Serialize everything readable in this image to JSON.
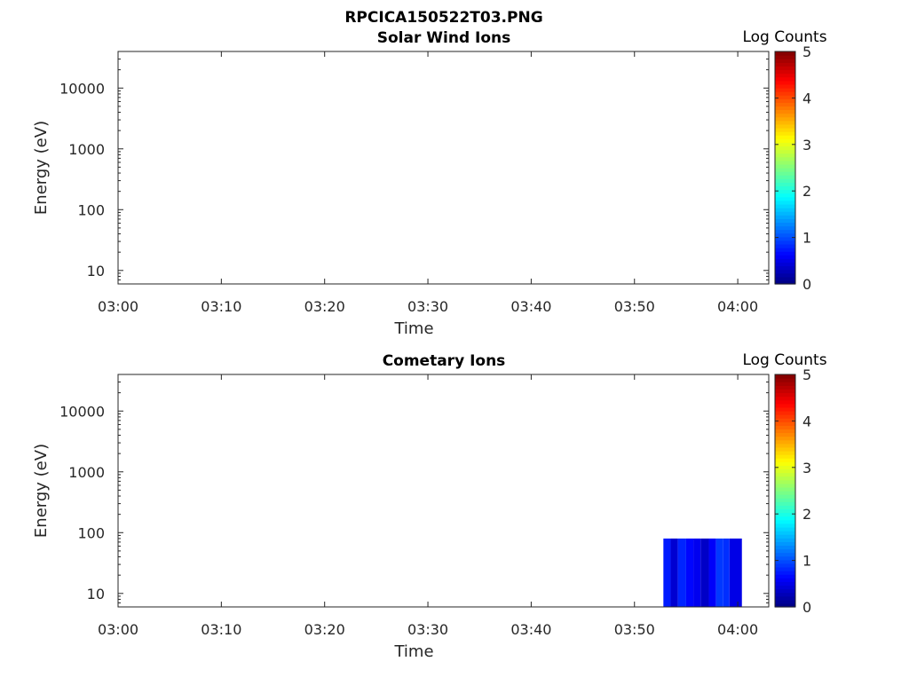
{
  "figure": {
    "title": "RPCICA150522T03.PNG"
  },
  "chart_data": [
    {
      "type": "heatmap",
      "title": "Solar Wind Ions",
      "xlabel": "Time",
      "ylabel": "Energy (eV)",
      "y_scale": "log",
      "xticks": [
        "03:00",
        "03:10",
        "03:20",
        "03:30",
        "03:40",
        "03:50",
        "04:00"
      ],
      "yticks": [
        "10",
        "100",
        "1000",
        "10000"
      ],
      "xlim_minutes_after_0300": [
        0,
        63
      ],
      "ylim": [
        6,
        40000
      ],
      "colorbar": {
        "label": "Log Counts",
        "ticks": [
          "0",
          "1",
          "2",
          "3",
          "4",
          "5"
        ],
        "range": [
          0,
          5
        ]
      },
      "cells": []
    },
    {
      "type": "heatmap",
      "title": "Cometary Ions",
      "xlabel": "Time",
      "ylabel": "Energy (eV)",
      "y_scale": "log",
      "xticks": [
        "03:00",
        "03:10",
        "03:20",
        "03:30",
        "03:40",
        "03:50",
        "04:00"
      ],
      "yticks": [
        "10",
        "100",
        "1000",
        "10000"
      ],
      "xlim_minutes_after_0300": [
        0,
        63
      ],
      "ylim": [
        6,
        40000
      ],
      "colorbar": {
        "label": "Log Counts",
        "ticks": [
          "0",
          "1",
          "2",
          "3",
          "4",
          "5"
        ],
        "range": [
          0,
          5
        ]
      },
      "cells": [
        {
          "t0": 52.8,
          "t1": 53.5,
          "e0": 6,
          "e1": 80,
          "v": 0.75
        },
        {
          "t0": 53.5,
          "t1": 54.2,
          "e0": 6,
          "e1": 80,
          "v": 0.4
        },
        {
          "t0": 54.2,
          "t1": 55.0,
          "e0": 6,
          "e1": 80,
          "v": 0.8
        },
        {
          "t0": 55.0,
          "t1": 55.7,
          "e0": 6,
          "e1": 80,
          "v": 0.65
        },
        {
          "t0": 55.7,
          "t1": 56.4,
          "e0": 6,
          "e1": 80,
          "v": 0.55
        },
        {
          "t0": 56.4,
          "t1": 57.2,
          "e0": 6,
          "e1": 80,
          "v": 0.35
        },
        {
          "t0": 57.2,
          "t1": 57.9,
          "e0": 6,
          "e1": 80,
          "v": 0.6
        },
        {
          "t0": 57.9,
          "t1": 58.6,
          "e0": 6,
          "e1": 80,
          "v": 0.9
        },
        {
          "t0": 58.6,
          "t1": 59.2,
          "e0": 6,
          "e1": 80,
          "v": 0.85
        },
        {
          "t0": 59.2,
          "t1": 60.4,
          "e0": 6,
          "e1": 80,
          "v": 0.5
        }
      ]
    }
  ]
}
